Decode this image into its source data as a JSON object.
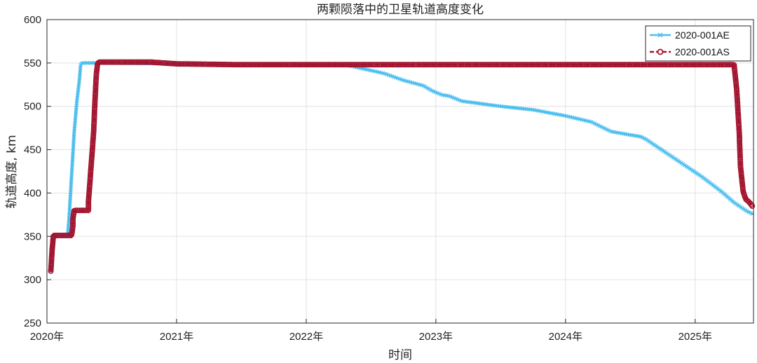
{
  "chart_data": {
    "type": "line",
    "title": "两颗陨落中的卫星轨道高度变化",
    "xlabel": "时间",
    "ylabel": "轨道高度, km",
    "xlim": [
      2020.0,
      2025.45
    ],
    "ylim": [
      250,
      600
    ],
    "x_ticks": [
      {
        "value": 2020,
        "label": "2020年"
      },
      {
        "value": 2021,
        "label": "2021年"
      },
      {
        "value": 2022,
        "label": "2022年"
      },
      {
        "value": 2023,
        "label": "2023年"
      },
      {
        "value": 2024,
        "label": "2024年"
      },
      {
        "value": 2025,
        "label": "2025年"
      }
    ],
    "y_ticks": [
      250,
      300,
      350,
      400,
      450,
      500,
      550,
      600
    ],
    "grid": true,
    "legend_position": "top-right",
    "series": [
      {
        "name": "2020-001AE",
        "color": "#4DBEEE",
        "marker": "x",
        "x": [
          2020.03,
          2020.05,
          2020.16,
          2020.17,
          2020.19,
          2020.21,
          2020.23,
          2020.25,
          2020.26,
          2020.27,
          2020.35,
          2020.45,
          2021.0,
          2021.5,
          2022.0,
          2022.3,
          2022.45,
          2022.6,
          2022.75,
          2022.9,
          2022.97,
          2023.05,
          2023.1,
          2023.2,
          2023.25,
          2023.5,
          2023.75,
          2024.0,
          2024.2,
          2024.35,
          2024.5,
          2024.58,
          2024.62,
          2024.75,
          2024.9,
          2025.05,
          2025.2,
          2025.3,
          2025.4,
          2025.44
        ],
        "y": [
          310,
          351,
          351,
          370,
          420,
          470,
          505,
          530,
          548,
          550,
          550,
          550,
          549,
          548,
          548,
          548,
          543,
          538,
          530,
          524,
          518,
          513,
          512,
          506,
          505,
          500,
          496,
          489,
          482,
          471,
          467,
          465,
          462,
          449,
          434,
          419,
          402,
          389,
          379,
          376
        ]
      },
      {
        "name": "2020-001AS",
        "color": "#A2142F",
        "marker": "o",
        "x": [
          2020.03,
          2020.04,
          2020.05,
          2020.19,
          2020.2,
          2020.2,
          2020.21,
          2020.32,
          2020.32,
          2020.34,
          2020.36,
          2020.37,
          2020.38,
          2020.39,
          2020.4,
          2020.55,
          2020.8,
          2021.0,
          2021.5,
          2022.0,
          2023.0,
          2024.0,
          2025.0,
          2025.3,
          2025.32,
          2025.34,
          2025.35,
          2025.37,
          2025.39,
          2025.42,
          2025.44
        ],
        "y": [
          310,
          335,
          351,
          351,
          362,
          370,
          380,
          380,
          390,
          430,
          470,
          505,
          535,
          549,
          551,
          551,
          551,
          549,
          548,
          548,
          548,
          548,
          548,
          548,
          520,
          470,
          430,
          402,
          393,
          389,
          385
        ]
      }
    ]
  }
}
